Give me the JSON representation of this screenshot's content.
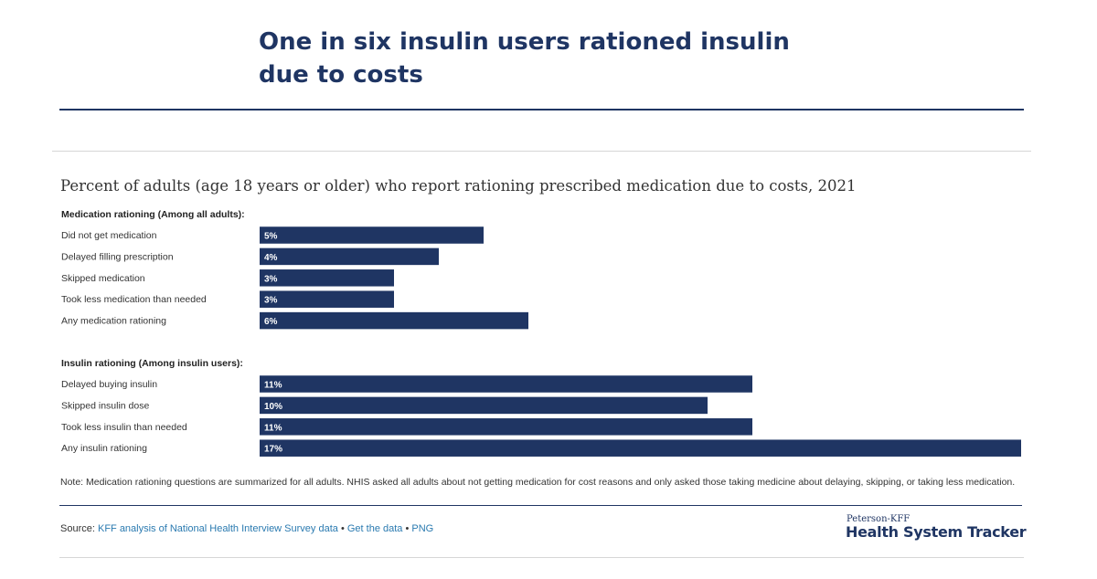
{
  "headline": "One in six insulin users rationed insulin due to costs",
  "note": "Note: Medication rationing questions are summarized for all adults. NHIS asked all adults about not getting medication for cost reasons and only asked those taking medicine about delaying, skipping, or taking less medication.",
  "source": {
    "label": "Source:",
    "link_analysis": "KFF analysis of National Health Interview Survey data",
    "separator": "•",
    "link_data": "Get the data",
    "link_png": "PNG"
  },
  "logo": {
    "small": "Peterson-KFF",
    "big": "Health System Tracker"
  },
  "colors": {
    "bar": "#1f3563",
    "title": "#1f3563",
    "link": "#2a7ab0"
  },
  "chart_data": {
    "type": "bar",
    "orientation": "horizontal",
    "title": "Percent of adults (age 18 years or older) who report rationing  prescribed medication due to costs, 2021",
    "xlim": [
      0,
      17
    ],
    "groups": [
      {
        "label": "Medication rationing (Among all adults):",
        "categories": [
          "Did not get medication",
          "Delayed filling prescription",
          "Skipped medication",
          "Took less medication than needed",
          "Any medication rationing"
        ],
        "values": [
          5,
          4,
          3,
          3,
          6
        ],
        "value_labels": [
          "5%",
          "4%",
          "3%",
          "3%",
          "6%"
        ]
      },
      {
        "label": "Insulin rationing (Among insulin users):",
        "categories": [
          "Delayed buying insulin",
          "Skipped insulin dose",
          "Took less insulin than needed",
          "Any insulin rationing"
        ],
        "values": [
          11,
          10,
          11,
          17
        ],
        "value_labels": [
          "11%",
          "10%",
          "11%",
          "17%"
        ]
      }
    ]
  }
}
